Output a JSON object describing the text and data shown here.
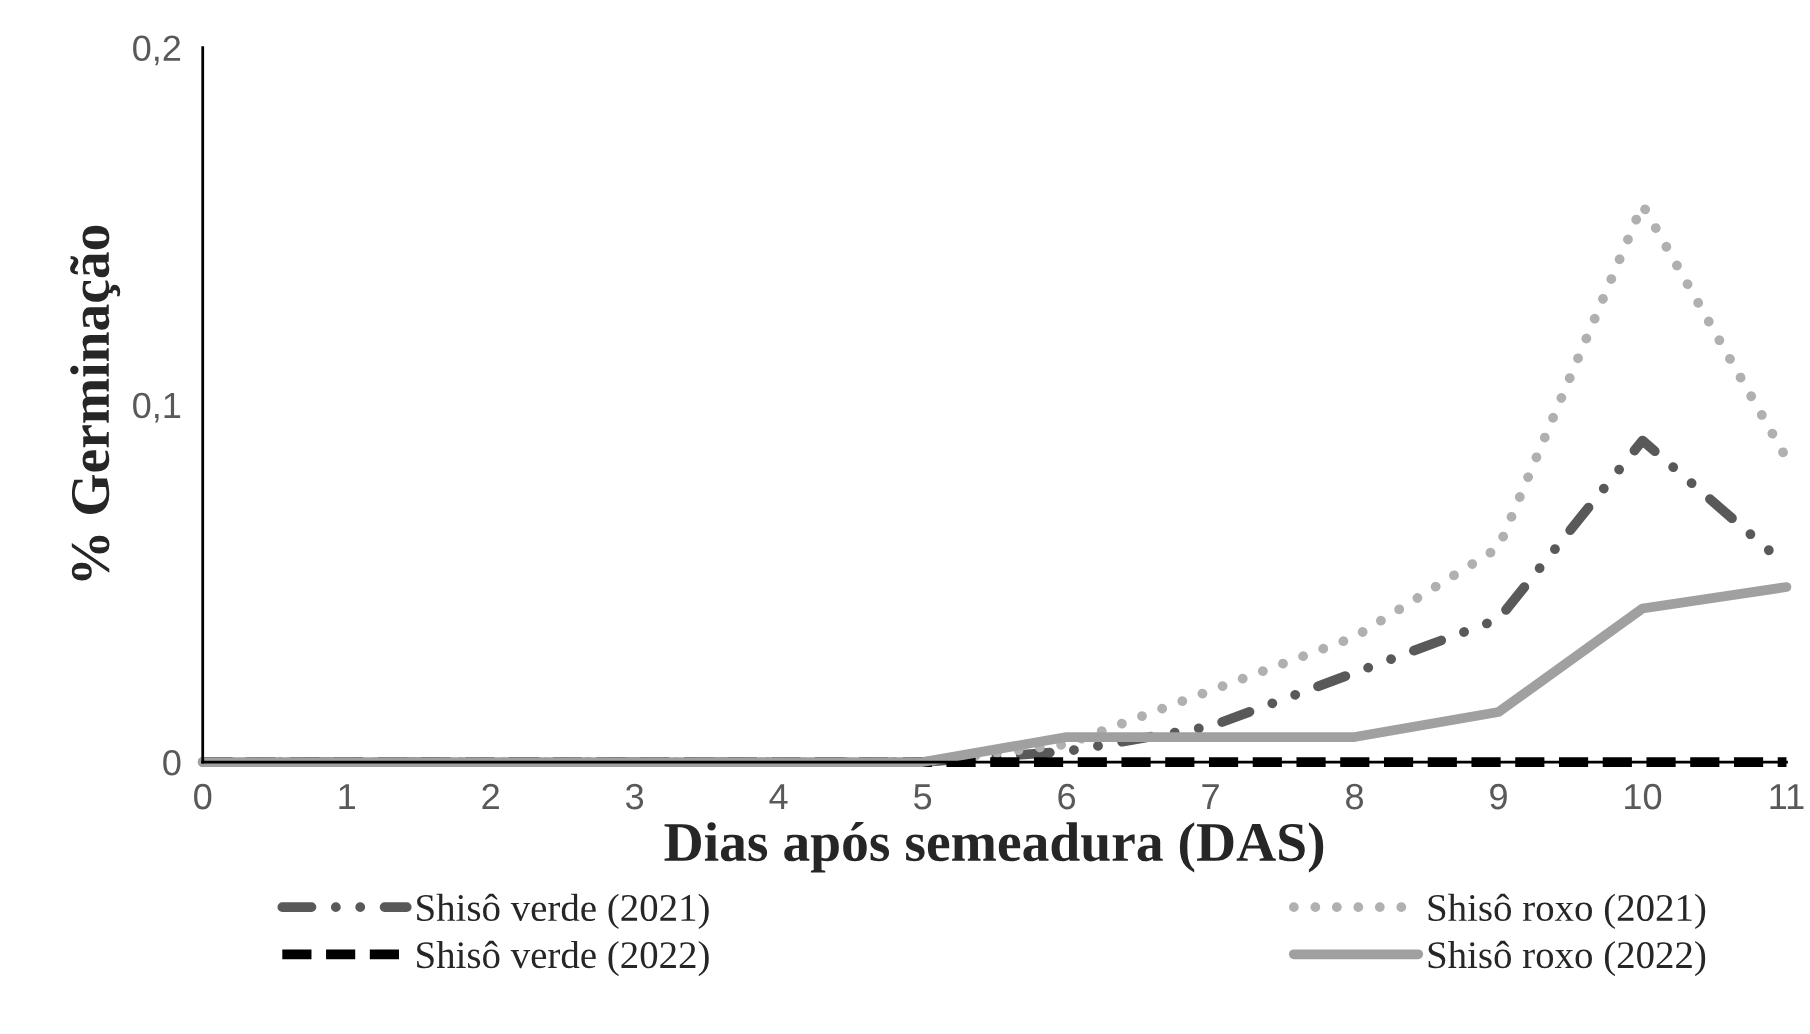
{
  "chart_data": {
    "type": "line",
    "xlabel": "Dias após semeadura (DAS)",
    "ylabel": "% Germinação",
    "x": [
      0,
      1,
      2,
      3,
      4,
      5,
      6,
      7,
      8,
      9,
      10,
      11
    ],
    "series": [
      {
        "name": "Shisô verde (2021)",
        "color": "#595959",
        "line_style": "dashdot",
        "values": [
          0,
          0,
          0,
          0,
          0,
          0,
          0.003,
          0.01,
          0.025,
          0.04,
          0.09,
          0.055
        ]
      },
      {
        "name": "Shisô roxo (2021)",
        "color": "#b0b0b0",
        "line_style": "dotted",
        "values": [
          0,
          0,
          0,
          0,
          0,
          0,
          0.005,
          0.02,
          0.035,
          0.06,
          0.156,
          0.085
        ]
      },
      {
        "name": "Shisô verde (2022)",
        "color": "#000000",
        "line_style": "dashed",
        "values": [
          0,
          0,
          0,
          0,
          0,
          0,
          0,
          0,
          0,
          0,
          0,
          0
        ]
      },
      {
        "name": "Shisô roxo (2022)",
        "color": "#a0a0a0",
        "line_style": "solid",
        "values": [
          0,
          0,
          0,
          0,
          0,
          0,
          0.007,
          0.007,
          0.007,
          0.014,
          0.043,
          0.049
        ]
      }
    ],
    "xlim": [
      0,
      11
    ],
    "xticks": [
      0,
      1,
      2,
      3,
      4,
      5,
      6,
      7,
      8,
      9,
      10,
      11
    ],
    "ylim": [
      0,
      0.2
    ],
    "yticks": [
      0,
      {
        "value": 0.1,
        "label": "0,1"
      },
      {
        "value": 0.2,
        "label": "0,2"
      }
    ],
    "grid": false,
    "legend": "bottom"
  }
}
